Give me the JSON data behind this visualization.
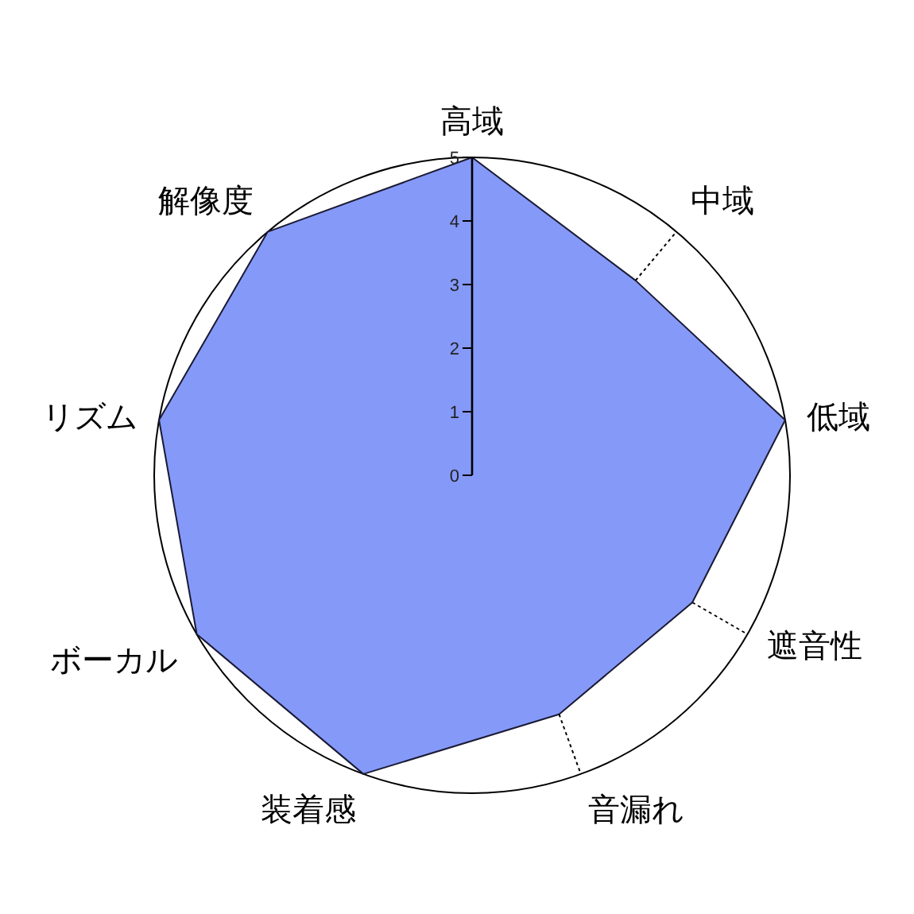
{
  "chart_data": {
    "type": "radar",
    "categories": [
      "高域",
      "中域",
      "低域",
      "遮音性",
      "音漏れ",
      "装着感",
      "ボーカル",
      "リズム",
      "解像度"
    ],
    "series": [
      {
        "color": "#8599f9",
        "values": [
          5,
          4,
          5,
          4,
          4,
          5,
          5,
          5,
          5
        ]
      }
    ],
    "ylim": [
      0,
      5
    ],
    "yticks": [
      0,
      1,
      2,
      3,
      4,
      5
    ]
  }
}
